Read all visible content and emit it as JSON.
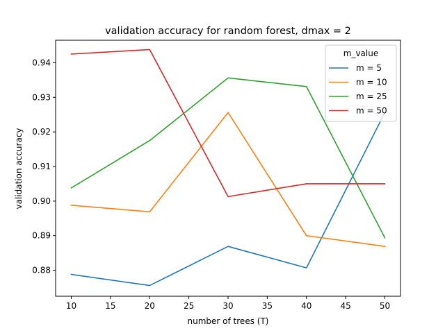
{
  "chart_data": {
    "type": "line",
    "title": "validation accuracy for random forest, dmax = 2",
    "xlabel": "number of trees (T)",
    "ylabel": "validation accuracy",
    "x": [
      10,
      20,
      30,
      40,
      50
    ],
    "xlim": [
      8,
      52
    ],
    "ylim": [
      0.8725,
      0.9465
    ],
    "xticks": [
      10,
      15,
      20,
      25,
      30,
      35,
      40,
      45,
      50
    ],
    "xtick_labels": [
      "10",
      "15",
      "20",
      "25",
      "30",
      "35",
      "40",
      "45",
      "50"
    ],
    "yticks": [
      0.88,
      0.89,
      0.9,
      0.91,
      0.92,
      0.93,
      0.94
    ],
    "ytick_labels": [
      "0.88",
      "0.89",
      "0.90",
      "0.91",
      "0.92",
      "0.93",
      "0.94"
    ],
    "grid": false,
    "legend": {
      "title": "m_value",
      "placement": "top-right"
    },
    "series": [
      {
        "name": "m = 5",
        "color": "#1f77b4",
        "values": [
          0.8788,
          0.8756,
          0.8869,
          0.8807,
          0.9256
        ]
      },
      {
        "name": "m = 10",
        "color": "#ff7f0e",
        "values": [
          0.8988,
          0.8969,
          0.9256,
          0.89,
          0.8869
        ]
      },
      {
        "name": "m = 25",
        "color": "#2ca02c",
        "values": [
          0.9038,
          0.9175,
          0.9356,
          0.9331,
          0.8894
        ]
      },
      {
        "name": "m = 50",
        "color": "#d62728",
        "values": [
          0.9425,
          0.9438,
          0.9013,
          0.905,
          0.905
        ]
      }
    ]
  }
}
